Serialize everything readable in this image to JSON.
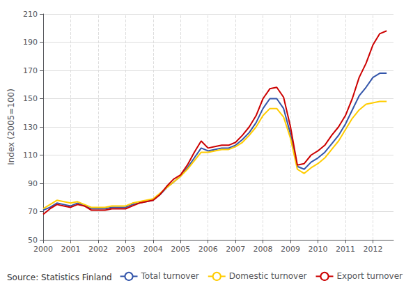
{
  "chart_data": {
    "type": "line",
    "ylabel": "Index (2005=100)",
    "annotations": [
      "Source: Statistics Finland"
    ],
    "x": [
      2000,
      2000.25,
      2000.5,
      2000.75,
      2001,
      2001.25,
      2001.5,
      2001.75,
      2002,
      2002.25,
      2002.5,
      2002.75,
      2003,
      2003.25,
      2003.5,
      2003.75,
      2004,
      2004.25,
      2004.5,
      2004.75,
      2005,
      2005.25,
      2005.5,
      2005.75,
      2006,
      2006.25,
      2006.5,
      2006.75,
      2007,
      2007.25,
      2007.5,
      2007.75,
      2008,
      2008.25,
      2008.5,
      2008.75,
      2009,
      2009.25,
      2009.5,
      2009.75,
      2010,
      2010.25,
      2010.5,
      2010.75,
      2011,
      2011.25,
      2011.5,
      2011.75,
      2012,
      2012.25,
      2012.5
    ],
    "series": [
      {
        "name": "Total turnover",
        "color": "#3355aa",
        "values": [
          71,
          73,
          76,
          75,
          74,
          76,
          74,
          72,
          72,
          72,
          73,
          73,
          73,
          75,
          76,
          77,
          78,
          82,
          87,
          91,
          95,
          101,
          108,
          115,
          113,
          114,
          115,
          115,
          117,
          121,
          126,
          133,
          143,
          150,
          150,
          143,
          125,
          102,
          100,
          105,
          108,
          112,
          118,
          124,
          132,
          142,
          152,
          158,
          165,
          168,
          168
        ]
      },
      {
        "name": "Domestic turnover",
        "color": "#ffcc00",
        "values": [
          72,
          75,
          78,
          77,
          76,
          77,
          75,
          73,
          73,
          73,
          74,
          74,
          74,
          76,
          77,
          78,
          79,
          83,
          87,
          91,
          95,
          100,
          106,
          112,
          112,
          113,
          114,
          114,
          116,
          119,
          124,
          130,
          138,
          143,
          143,
          137,
          122,
          100,
          97,
          101,
          104,
          108,
          114,
          120,
          128,
          136,
          142,
          146,
          147,
          148,
          148
        ]
      },
      {
        "name": "Export turnover",
        "color": "#cc0000",
        "values": [
          68,
          72,
          75,
          74,
          73,
          75,
          74,
          71,
          71,
          71,
          72,
          72,
          72,
          74,
          76,
          77,
          78,
          82,
          88,
          93,
          96,
          103,
          112,
          120,
          115,
          116,
          117,
          117,
          119,
          124,
          130,
          138,
          150,
          157,
          158,
          151,
          130,
          103,
          104,
          110,
          113,
          117,
          124,
          130,
          138,
          150,
          165,
          175,
          188,
          196,
          198
        ]
      }
    ],
    "xlim": [
      2000,
      2012.75
    ],
    "xticks": [
      2000,
      2001,
      2002,
      2003,
      2004,
      2005,
      2006,
      2007,
      2008,
      2009,
      2010,
      2011,
      2012
    ],
    "ylim": [
      50,
      210
    ],
    "yticks": [
      50,
      70,
      90,
      110,
      130,
      150,
      170,
      190,
      210
    ],
    "grid": true,
    "legend": "lower right"
  }
}
